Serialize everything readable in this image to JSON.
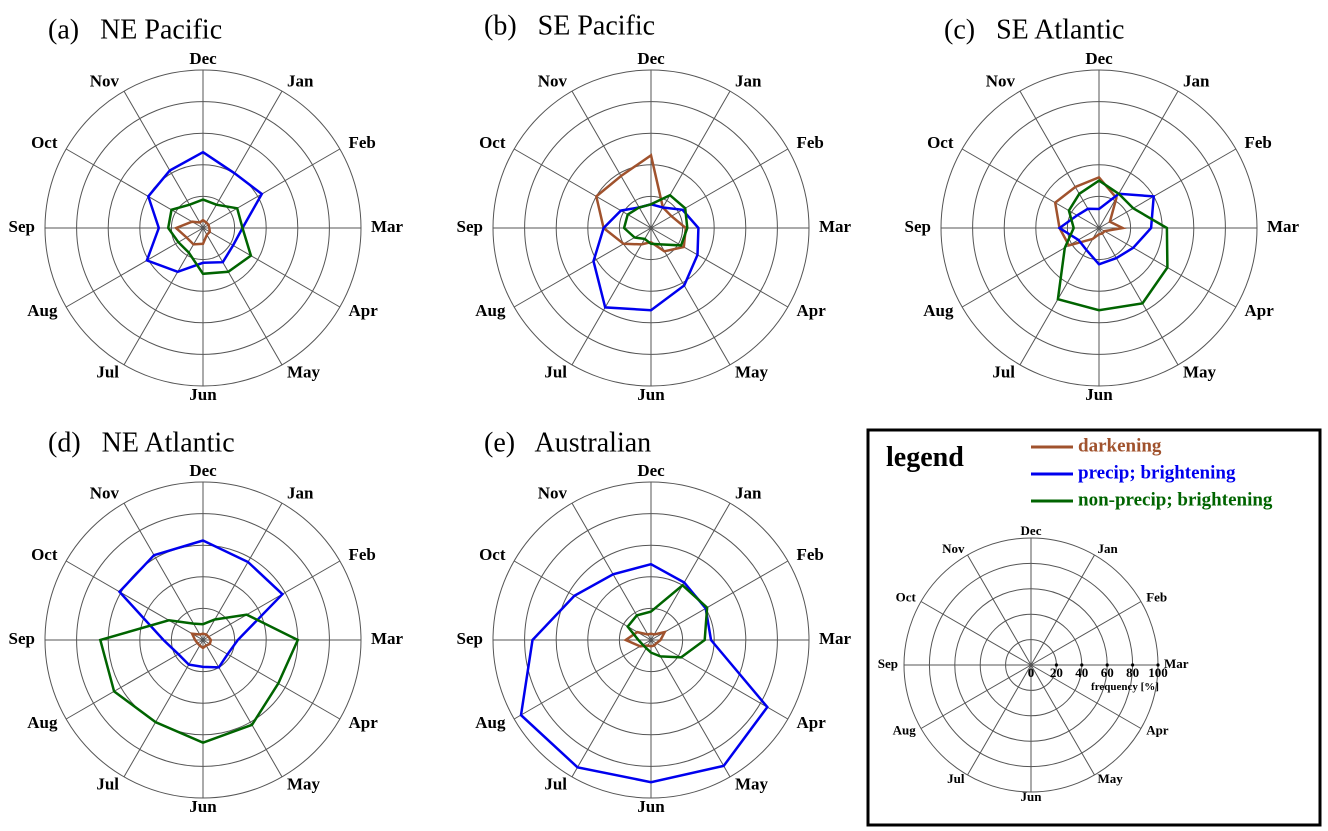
{
  "chart_data": [
    {
      "type": "radar",
      "panel": "(a)",
      "title": "NE Pacific",
      "categories": [
        "Dec",
        "Jan",
        "Feb",
        "Mar",
        "Apr",
        "May",
        "Jun",
        "Jul",
        "Aug",
        "Sep",
        "Oct",
        "Nov"
      ],
      "rlim": [
        0,
        100
      ],
      "series": [
        {
          "name": "darkening",
          "values": [
            5,
            4,
            4,
            4,
            5,
            5,
            10,
            12,
            12,
            17,
            8,
            4
          ]
        },
        {
          "name": "precip; brightening",
          "values": [
            48,
            40,
            43,
            25,
            22,
            25,
            22,
            32,
            41,
            28,
            40,
            42
          ]
        },
        {
          "name": "non-precip; brightening",
          "values": [
            18,
            17,
            25,
            25,
            35,
            32,
            29,
            18,
            18,
            22,
            23,
            17
          ]
        }
      ]
    },
    {
      "type": "radar",
      "panel": "(b)",
      "title": "SE Pacific",
      "categories": [
        "Dec",
        "Jan",
        "Feb",
        "Mar",
        "Apr",
        "May",
        "Jun",
        "Jul",
        "Aug",
        "Sep",
        "Oct",
        "Nov"
      ],
      "rlim": [
        0,
        100
      ],
      "series": [
        {
          "name": "darkening",
          "values": [
            46,
            15,
            15,
            22,
            24,
            17,
            9,
            12,
            20,
            30,
            40,
            38
          ]
        },
        {
          "name": "precip; brightening",
          "values": [
            15,
            15,
            23,
            30,
            34,
            42,
            52,
            58,
            42,
            30,
            22,
            15
          ]
        },
        {
          "name": "non-precip; brightening",
          "values": [
            15,
            24,
            25,
            23,
            22,
            12,
            10,
            8,
            12,
            17,
            17,
            15
          ]
        }
      ]
    },
    {
      "type": "radar",
      "panel": "(c)",
      "title": "SE Atlantic",
      "categories": [
        "Dec",
        "Jan",
        "Feb",
        "Mar",
        "Apr",
        "May",
        "Jun",
        "Jul",
        "Aug",
        "Sep",
        "Oct",
        "Nov"
      ],
      "rlim": [
        0,
        100
      ],
      "series": [
        {
          "name": "darkening",
          "values": [
            32,
            22,
            8,
            15,
            4,
            4,
            4,
            8,
            22,
            25,
            32,
            30
          ]
        },
        {
          "name": "precip; brightening",
          "values": [
            12,
            25,
            40,
            33,
            25,
            22,
            23,
            16,
            15,
            25,
            16,
            14
          ]
        },
        {
          "name": "non-precip; brightening",
          "values": [
            30,
            25,
            25,
            43,
            50,
            55,
            52,
            52,
            25,
            16,
            22,
            25
          ]
        }
      ]
    },
    {
      "type": "radar",
      "panel": "(d)",
      "title": "NE Atlantic",
      "categories": [
        "Dec",
        "Jan",
        "Feb",
        "Mar",
        "Apr",
        "May",
        "Jun",
        "Jul",
        "Aug",
        "Sep",
        "Oct",
        "Nov"
      ],
      "rlim": [
        0,
        100
      ],
      "series": [
        {
          "name": "darkening",
          "values": [
            4,
            4,
            4,
            5,
            5,
            4,
            5,
            4,
            4,
            5,
            8,
            4
          ]
        },
        {
          "name": "precip; brightening",
          "values": [
            63,
            57,
            58,
            22,
            18,
            20,
            17,
            18,
            18,
            25,
            61,
            62
          ]
        },
        {
          "name": "non-precip; brightening",
          "values": [
            10,
            15,
            32,
            60,
            55,
            62,
            65,
            60,
            65,
            65,
            25,
            12
          ]
        }
      ]
    },
    {
      "type": "radar",
      "panel": "(e)",
      "title": "Australian",
      "categories": [
        "Dec",
        "Jan",
        "Feb",
        "Mar",
        "Apr",
        "May",
        "Jun",
        "Jul",
        "Aug",
        "Sep",
        "Oct",
        "Nov"
      ],
      "rlim": [
        0,
        100
      ],
      "series": [
        {
          "name": "darkening",
          "values": [
            4,
            4,
            10,
            6,
            4,
            4,
            4,
            4,
            8,
            16,
            10,
            4
          ]
        },
        {
          "name": "precip; brightening",
          "values": [
            48,
            42,
            40,
            38,
            85,
            92,
            90,
            93,
            95,
            75,
            56,
            48
          ]
        },
        {
          "name": "non-precip; brightening",
          "values": [
            18,
            40,
            41,
            34,
            22,
            12,
            8,
            6,
            6,
            8,
            17,
            18
          ]
        }
      ]
    }
  ],
  "colors": {
    "darkening": "#a0522d",
    "precip; brightening": "#0000ee",
    "non-precip; brightening": "#006400",
    "grid": "#555555"
  },
  "legend": {
    "title": "legend",
    "items": [
      {
        "label": "darkening",
        "color": "#a0522d"
      },
      {
        "label": "precip; brightening",
        "color": "#0000ee"
      },
      {
        "label": "non-precip; brightening",
        "color": "#006400"
      }
    ],
    "ticks": [
      "0",
      "20",
      "40",
      "60",
      "80",
      "100"
    ],
    "axis_label": "frequency [%]"
  }
}
